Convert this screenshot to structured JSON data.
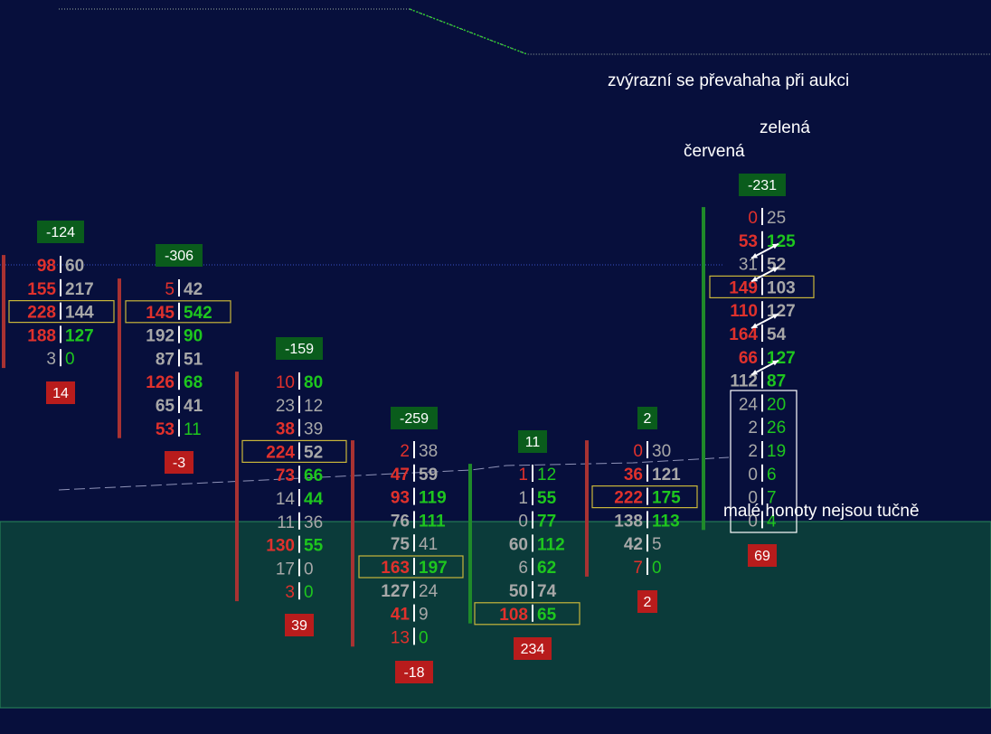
{
  "colors": {
    "background": "#070f3c",
    "value_zone": "#0b3b3a",
    "bid_red": "#e0312c",
    "ask_green": "#1ec61e",
    "neutral": "#a8a8a8",
    "delta_positive": "#0a5c1c",
    "delta_negative": "#b81c1c",
    "poc_box": "#c9b63a",
    "highlight_box": "#ffffff"
  },
  "annotations": {
    "auction_note": "zvýrazní se převahaha při aukci",
    "green_label": "zelená",
    "red_label": "červená",
    "small_values_note": "malé honoty nejsou tučně"
  },
  "chart_data": {
    "type": "footprint",
    "title": "",
    "xlabel": "",
    "ylabel": "",
    "columns": [
      {
        "name": "",
        "top_delta": "-124",
        "bottom_delta": "14",
        "bar_color": "red",
        "rows": [
          {
            "bid": 98,
            "ask": 60,
            "bid_c": "r",
            "ask_c": "g"
          },
          {
            "bid": 155,
            "ask": 217,
            "bid_c": "r",
            "ask_c": "g"
          },
          {
            "bid": 228,
            "ask": 144,
            "bid_c": "r",
            "ask_c": "g",
            "poc": true
          },
          {
            "bid": 188,
            "ask": 127,
            "bid_c": "r",
            "ask_c": "G"
          },
          {
            "bid": 3,
            "ask": 0,
            "bid_c": "n",
            "ask_c": "G"
          }
        ]
      },
      {
        "name": "",
        "top_delta": "-306",
        "bottom_delta": "-3",
        "bar_color": "red",
        "rows": [
          {
            "bid": 5,
            "ask": 42,
            "bid_c": "r",
            "ask_c": "g"
          },
          {
            "bid": 145,
            "ask": 542,
            "bid_c": "r",
            "ask_c": "G",
            "poc": true
          },
          {
            "bid": 192,
            "ask": 90,
            "bid_c": "g",
            "ask_c": "G"
          },
          {
            "bid": 87,
            "ask": 51,
            "bid_c": "g",
            "ask_c": "g"
          },
          {
            "bid": 126,
            "ask": 68,
            "bid_c": "r",
            "ask_c": "G"
          },
          {
            "bid": 65,
            "ask": 41,
            "bid_c": "g",
            "ask_c": "g"
          },
          {
            "bid": 53,
            "ask": 11,
            "bid_c": "r",
            "ask_c": "G"
          }
        ]
      },
      {
        "name": "",
        "top_delta": "-159",
        "bottom_delta": "39",
        "bar_color": "red",
        "rows": [
          {
            "bid": 10,
            "ask": 80,
            "bid_c": "r",
            "ask_c": "G"
          },
          {
            "bid": 23,
            "ask": 12,
            "bid_c": "n",
            "ask_c": "n"
          },
          {
            "bid": 38,
            "ask": 39,
            "bid_c": "r",
            "ask_c": "n"
          },
          {
            "bid": 224,
            "ask": 52,
            "bid_c": "r",
            "ask_c": "g",
            "poc": true
          },
          {
            "bid": 73,
            "ask": 66,
            "bid_c": "r",
            "ask_c": "G"
          },
          {
            "bid": 14,
            "ask": 44,
            "bid_c": "n",
            "ask_c": "G"
          },
          {
            "bid": 11,
            "ask": 36,
            "bid_c": "n",
            "ask_c": "n"
          },
          {
            "bid": 130,
            "ask": 55,
            "bid_c": "r",
            "ask_c": "G"
          },
          {
            "bid": 17,
            "ask": 0,
            "bid_c": "n",
            "ask_c": "n"
          },
          {
            "bid": 3,
            "ask": 0,
            "bid_c": "r",
            "ask_c": "G"
          }
        ]
      },
      {
        "name": "",
        "top_delta": "-259",
        "bottom_delta": "-18",
        "bar_color": "red",
        "rows": [
          {
            "bid": 2,
            "ask": 38,
            "bid_c": "r",
            "ask_c": "n"
          },
          {
            "bid": 47,
            "ask": 59,
            "bid_c": "r",
            "ask_c": "g"
          },
          {
            "bid": 93,
            "ask": 119,
            "bid_c": "r",
            "ask_c": "G"
          },
          {
            "bid": 76,
            "ask": 111,
            "bid_c": "g",
            "ask_c": "G"
          },
          {
            "bid": 75,
            "ask": 41,
            "bid_c": "g",
            "ask_c": "n"
          },
          {
            "bid": 163,
            "ask": 197,
            "bid_c": "r",
            "ask_c": "G",
            "poc": true
          },
          {
            "bid": 127,
            "ask": 24,
            "bid_c": "g",
            "ask_c": "n"
          },
          {
            "bid": 41,
            "ask": 9,
            "bid_c": "r",
            "ask_c": "n"
          },
          {
            "bid": 13,
            "ask": 0,
            "bid_c": "r",
            "ask_c": "G"
          }
        ]
      },
      {
        "name": "",
        "top_delta": "11",
        "bottom_delta": "234",
        "bar_color": "green",
        "rows": [
          {
            "bid": 1,
            "ask": 12,
            "bid_c": "r",
            "ask_c": "G"
          },
          {
            "bid": 1,
            "ask": 55,
            "bid_c": "n",
            "ask_c": "G"
          },
          {
            "bid": 0,
            "ask": 77,
            "bid_c": "n",
            "ask_c": "G"
          },
          {
            "bid": 60,
            "ask": 112,
            "bid_c": "g",
            "ask_c": "G"
          },
          {
            "bid": 6,
            "ask": 62,
            "bid_c": "n",
            "ask_c": "G"
          },
          {
            "bid": 50,
            "ask": 74,
            "bid_c": "g",
            "ask_c": "g"
          },
          {
            "bid": 108,
            "ask": 65,
            "bid_c": "r",
            "ask_c": "G",
            "poc": true
          }
        ]
      },
      {
        "name": "",
        "top_delta": "2",
        "bottom_delta": "2",
        "bar_color": "red",
        "rows": [
          {
            "bid": 0,
            "ask": 30,
            "bid_c": "r",
            "ask_c": "n"
          },
          {
            "bid": 36,
            "ask": 121,
            "bid_c": "r",
            "ask_c": "g"
          },
          {
            "bid": 222,
            "ask": 175,
            "bid_c": "r",
            "ask_c": "G",
            "poc": true
          },
          {
            "bid": 138,
            "ask": 113,
            "bid_c": "g",
            "ask_c": "G"
          },
          {
            "bid": 42,
            "ask": 5,
            "bid_c": "g",
            "ask_c": "n"
          },
          {
            "bid": 7,
            "ask": 0,
            "bid_c": "r",
            "ask_c": "G"
          }
        ]
      },
      {
        "name": "",
        "top_delta": "-231",
        "bottom_delta": "69",
        "bar_color": "green",
        "rows": [
          {
            "bid": 0,
            "ask": 25,
            "bid_c": "r",
            "ask_c": "n"
          },
          {
            "bid": 53,
            "ask": 125,
            "bid_c": "r",
            "ask_c": "G"
          },
          {
            "bid": 31,
            "ask": 52,
            "bid_c": "n",
            "ask_c": "g"
          },
          {
            "bid": 149,
            "ask": 103,
            "bid_c": "r",
            "ask_c": "g",
            "poc": true
          },
          {
            "bid": 110,
            "ask": 127,
            "bid_c": "r",
            "ask_c": "g"
          },
          {
            "bid": 164,
            "ask": 54,
            "bid_c": "r",
            "ask_c": "g"
          },
          {
            "bid": 66,
            "ask": 127,
            "bid_c": "r",
            "ask_c": "G"
          },
          {
            "bid": 112,
            "ask": 87,
            "bid_c": "g",
            "ask_c": "G"
          },
          {
            "bid": 24,
            "ask": 20,
            "bid_c": "n",
            "ask_c": "G"
          },
          {
            "bid": 2,
            "ask": 26,
            "bid_c": "n",
            "ask_c": "G"
          },
          {
            "bid": 2,
            "ask": 19,
            "bid_c": "n",
            "ask_c": "G"
          },
          {
            "bid": 0,
            "ask": 6,
            "bid_c": "n",
            "ask_c": "G"
          },
          {
            "bid": 0,
            "ask": 7,
            "bid_c": "n",
            "ask_c": "G"
          },
          {
            "bid": 0,
            "ask": 4,
            "bid_c": "n",
            "ask_c": "G"
          }
        ]
      }
    ]
  }
}
